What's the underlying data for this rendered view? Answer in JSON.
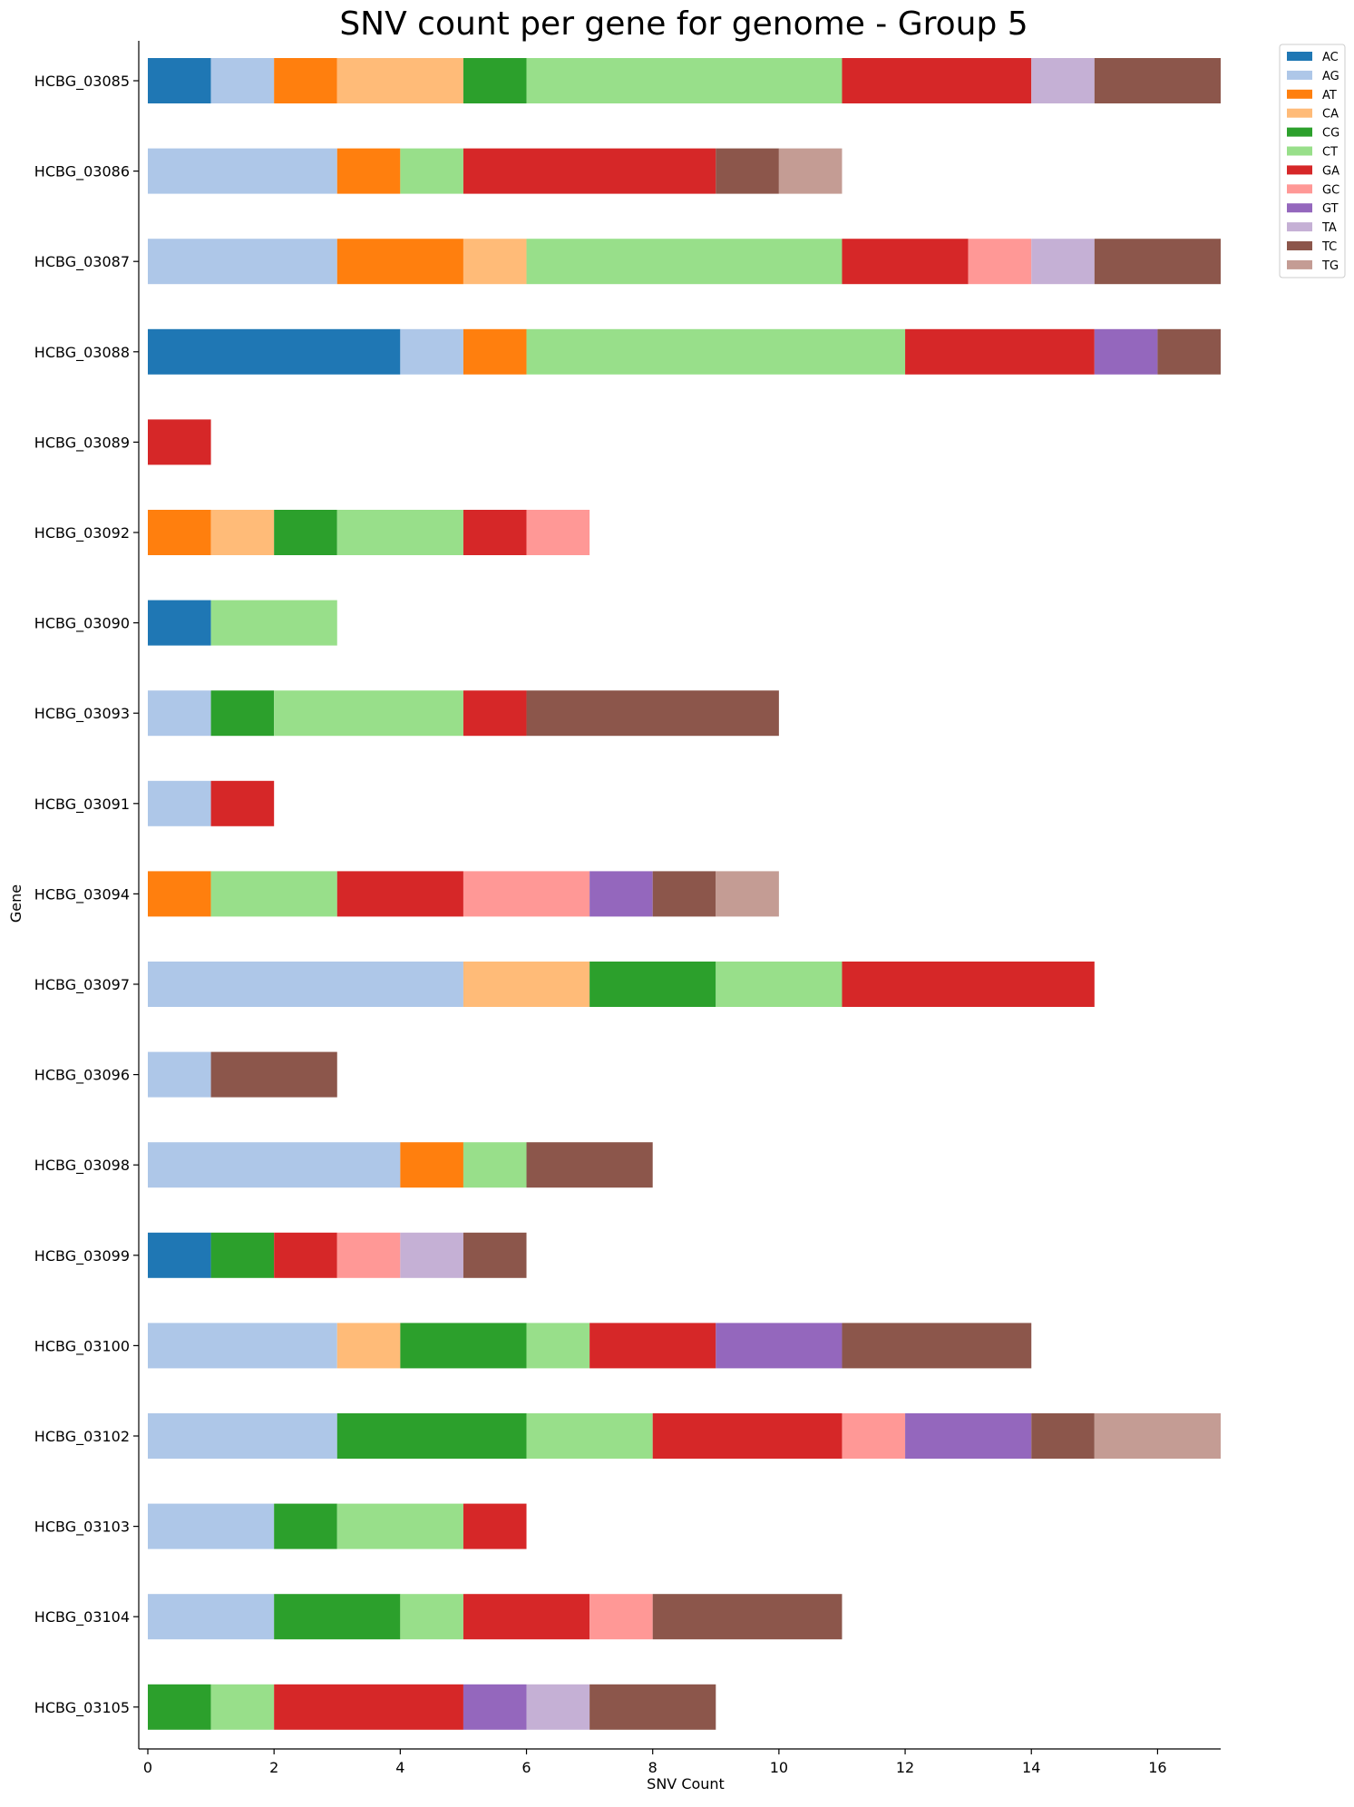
{
  "chart_data": {
    "type": "bar",
    "orientation": "horizontal",
    "stacked": true,
    "title": "SNV count per gene for genome - Group 5",
    "xlabel": "SNV Count",
    "ylabel": "Gene",
    "xlim": [
      0,
      17
    ],
    "xticks": [
      0,
      2,
      4,
      6,
      8,
      10,
      12,
      14,
      16
    ],
    "grid": false,
    "legend_position": "top-right-outside",
    "categories": [
      "HCBG_03085",
      "HCBG_03086",
      "HCBG_03087",
      "HCBG_03088",
      "HCBG_03089",
      "HCBG_03092",
      "HCBG_03090",
      "HCBG_03093",
      "HCBG_03091",
      "HCBG_03094",
      "HCBG_03097",
      "HCBG_03096",
      "HCBG_03098",
      "HCBG_03099",
      "HCBG_03100",
      "HCBG_03102",
      "HCBG_03103",
      "HCBG_03104",
      "HCBG_03105"
    ],
    "series": [
      {
        "name": "AC",
        "color": "#1f77b4",
        "values": [
          1,
          0,
          0,
          4,
          0,
          0,
          1,
          0,
          0,
          0,
          0,
          0,
          0,
          1,
          0,
          0,
          0,
          0,
          0
        ]
      },
      {
        "name": "AG",
        "color": "#aec7e8",
        "values": [
          1,
          3,
          3,
          1,
          0,
          0,
          0,
          1,
          1,
          0,
          5,
          1,
          4,
          0,
          3,
          3,
          2,
          2,
          0
        ]
      },
      {
        "name": "AT",
        "color": "#ff7f0e",
        "values": [
          1,
          1,
          2,
          1,
          0,
          1,
          0,
          0,
          0,
          1,
          0,
          0,
          1,
          0,
          0,
          0,
          0,
          0,
          0
        ]
      },
      {
        "name": "CA",
        "color": "#ffbb78",
        "values": [
          2,
          0,
          1,
          0,
          0,
          1,
          0,
          0,
          0,
          0,
          2,
          0,
          0,
          0,
          1,
          0,
          0,
          0,
          0
        ]
      },
      {
        "name": "CG",
        "color": "#2ca02c",
        "values": [
          1,
          0,
          0,
          0,
          0,
          1,
          0,
          1,
          0,
          0,
          2,
          0,
          0,
          1,
          2,
          3,
          1,
          2,
          1
        ]
      },
      {
        "name": "CT",
        "color": "#98df8a",
        "values": [
          5,
          1,
          5,
          6,
          0,
          2,
          2,
          3,
          0,
          2,
          2,
          0,
          1,
          0,
          1,
          2,
          2,
          1,
          1
        ]
      },
      {
        "name": "GA",
        "color": "#d62728",
        "values": [
          3,
          4,
          2,
          3,
          1,
          1,
          0,
          1,
          1,
          2,
          4,
          0,
          0,
          1,
          2,
          3,
          1,
          2,
          3
        ]
      },
      {
        "name": "GC",
        "color": "#ff9896",
        "values": [
          0,
          0,
          1,
          0,
          0,
          1,
          0,
          0,
          0,
          2,
          0,
          0,
          0,
          1,
          0,
          1,
          0,
          1,
          0
        ]
      },
      {
        "name": "GT",
        "color": "#9467bd",
        "values": [
          0,
          0,
          0,
          1,
          0,
          0,
          0,
          0,
          0,
          1,
          0,
          0,
          0,
          0,
          2,
          2,
          0,
          0,
          1
        ]
      },
      {
        "name": "TA",
        "color": "#c5b0d5",
        "values": [
          1,
          0,
          1,
          0,
          0,
          0,
          0,
          0,
          0,
          0,
          0,
          0,
          0,
          1,
          0,
          0,
          0,
          0,
          1
        ]
      },
      {
        "name": "TC",
        "color": "#8c564b",
        "values": [
          2,
          1,
          2,
          1,
          0,
          0,
          0,
          4,
          0,
          1,
          0,
          2,
          2,
          1,
          3,
          1,
          0,
          3,
          2
        ]
      },
      {
        "name": "TG",
        "color": "#c49c94",
        "values": [
          0,
          1,
          0,
          0,
          0,
          0,
          0,
          0,
          0,
          1,
          0,
          0,
          0,
          0,
          0,
          2,
          0,
          0,
          0
        ]
      }
    ]
  }
}
